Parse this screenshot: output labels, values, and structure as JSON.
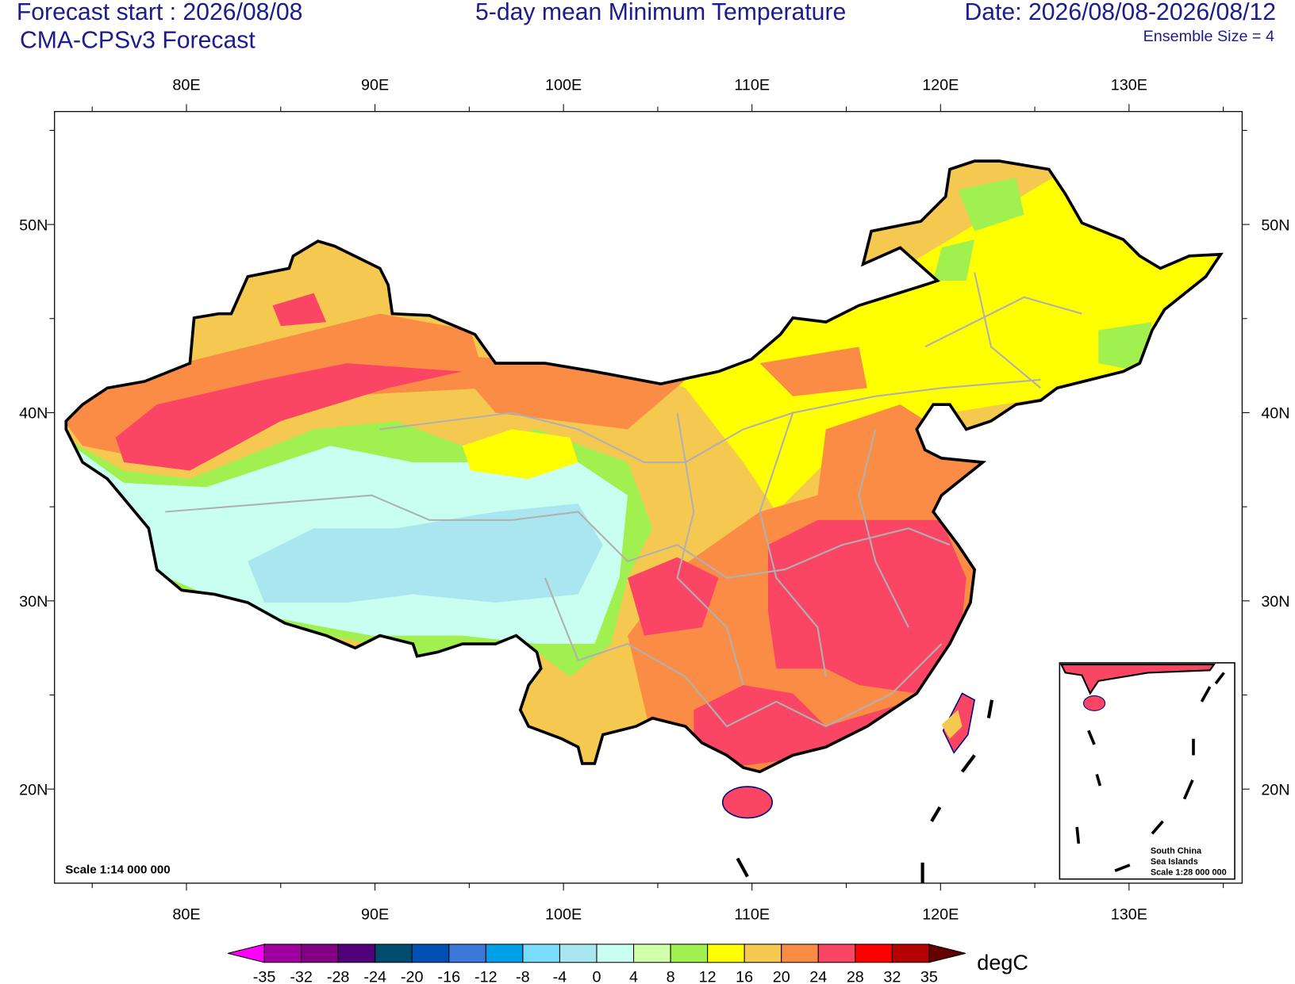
{
  "header": {
    "forecast_start": "Forecast start : 2026/08/08",
    "model": "CMA-CPSv3 Forecast",
    "title": "5-day mean Minimum Temperature",
    "date": "Date: 2026/08/08-2026/08/12",
    "ensemble": "Ensemble Size = 4"
  },
  "map": {
    "xlim": [
      73,
      136
    ],
    "ylim": [
      15,
      56
    ],
    "xticks": [
      {
        "value": 80,
        "label": "80E"
      },
      {
        "value": 90,
        "label": "90E"
      },
      {
        "value": 100,
        "label": "100E"
      },
      {
        "value": 110,
        "label": "110E"
      },
      {
        "value": 120,
        "label": "120E"
      },
      {
        "value": 130,
        "label": "130E"
      }
    ],
    "yticks": [
      {
        "value": 20,
        "label": "20N"
      },
      {
        "value": 30,
        "label": "30N"
      },
      {
        "value": 40,
        "label": "40N"
      },
      {
        "value": 50,
        "label": "50N"
      }
    ],
    "scale": "Scale 1:14 000 000",
    "inset": {
      "line1": "South China",
      "line2": "Sea Islands",
      "scale": "Scale 1:28 000 000"
    }
  },
  "colorbar": {
    "units": "degC",
    "levels": [
      -35,
      -32,
      -28,
      -24,
      -20,
      -16,
      -12,
      -8,
      -4,
      0,
      4,
      8,
      12,
      16,
      20,
      24,
      28,
      32,
      35
    ],
    "colors": [
      "#ff00ff",
      "#a000a0",
      "#820082",
      "#500078",
      "#004c6e",
      "#0050b4",
      "#3c78d8",
      "#00a0e6",
      "#78dcfa",
      "#aae6f0",
      "#c8fff0",
      "#d2ffaa",
      "#a0f050",
      "#ffff00",
      "#f5c850",
      "#fa8c46",
      "#fa4664",
      "#ff0000",
      "#b40000",
      "#640000"
    ]
  }
}
